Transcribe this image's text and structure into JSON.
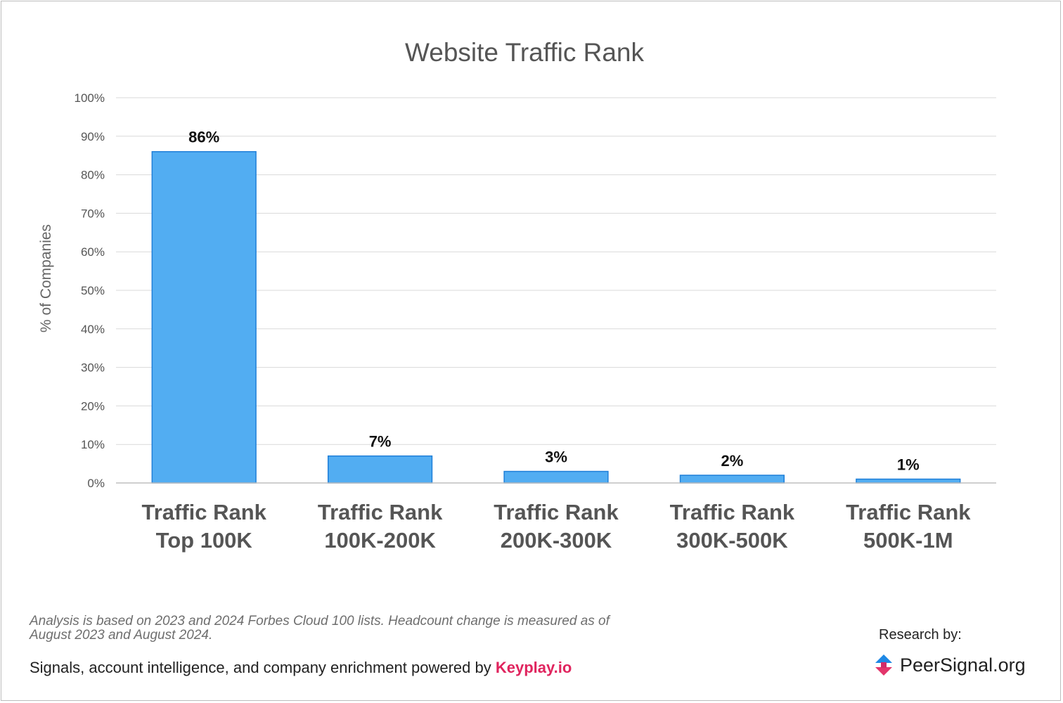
{
  "chart_data": {
    "type": "bar",
    "title": "Website Traffic Rank",
    "ylabel": "% of Companies",
    "xlabel": "",
    "categories": [
      [
        "Traffic Rank",
        "Top 100K"
      ],
      [
        "Traffic Rank",
        "100K-200K"
      ],
      [
        "Traffic Rank",
        "200K-300K"
      ],
      [
        "Traffic Rank",
        "300K-500K"
      ],
      [
        "Traffic Rank",
        "500K-1M"
      ]
    ],
    "values": [
      86,
      7,
      3,
      2,
      1
    ],
    "data_labels": [
      "86%",
      "7%",
      "3%",
      "2%",
      "1%"
    ],
    "ylim": [
      0,
      100
    ],
    "yticks": [
      0,
      10,
      20,
      30,
      40,
      50,
      60,
      70,
      80,
      90,
      100
    ],
    "ytick_labels": [
      "0%",
      "10%",
      "20%",
      "30%",
      "40%",
      "50%",
      "60%",
      "70%",
      "80%",
      "90%",
      "100%"
    ],
    "grid": true,
    "legend": "none",
    "bar_color": "#52adf2",
    "bar_edge_color": "#1f7fd8"
  },
  "footer": {
    "note": "Analysis is based on 2023 and 2024 Forbes Cloud 100 lists. Headcount change is measured as of August 2023 and August 2024.",
    "powered_text": "Signals, account intelligence, and company enrichment powered by ",
    "powered_brand": "Keyplay.io",
    "research_label": "Research by:",
    "logo_text": "PeerSignal.org",
    "logo_icon": "peersignal-logo-icon",
    "brand_color": "#e0245e"
  }
}
